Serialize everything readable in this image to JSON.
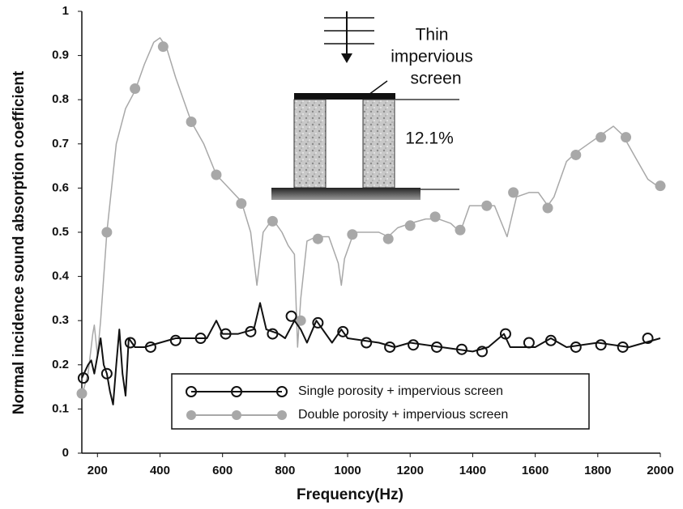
{
  "chart_data": {
    "type": "line",
    "x_label": "Frequency(Hz)",
    "y_label": "Normal incidence sound absorption coefficient",
    "xlim": [
      150,
      2000
    ],
    "ylim": [
      0,
      1
    ],
    "xticks": [
      200,
      400,
      600,
      800,
      1000,
      1200,
      1400,
      1600,
      1800,
      2000
    ],
    "yticks": [
      0,
      0.1,
      0.2,
      0.3,
      0.4,
      0.5,
      0.6,
      0.7,
      0.8,
      0.9,
      1
    ],
    "legend": "lower-center",
    "annotations": [
      "Thin",
      "impervious",
      "screen",
      "12.1%"
    ],
    "series": [
      {
        "name": "Single porosity + impervious screen",
        "color": "#111111",
        "marker": "open-circle",
        "x": [
          150,
          170,
          180,
          190,
          200,
          210,
          220,
          230,
          240,
          250,
          260,
          270,
          280,
          290,
          300,
          320,
          350,
          400,
          450,
          500,
          550,
          580,
          600,
          650,
          700,
          720,
          740,
          780,
          800,
          830,
          850,
          870,
          900,
          950,
          980,
          1000,
          1100,
          1150,
          1200,
          1300,
          1400,
          1450,
          1500,
          1520,
          1600,
          1650,
          1700,
          1800,
          1900,
          1950,
          2000
        ],
        "values": [
          0.17,
          0.2,
          0.21,
          0.18,
          0.22,
          0.26,
          0.2,
          0.18,
          0.14,
          0.11,
          0.2,
          0.28,
          0.18,
          0.13,
          0.26,
          0.24,
          0.24,
          0.25,
          0.26,
          0.26,
          0.26,
          0.3,
          0.27,
          0.27,
          0.28,
          0.34,
          0.28,
          0.27,
          0.26,
          0.3,
          0.28,
          0.25,
          0.3,
          0.25,
          0.28,
          0.26,
          0.25,
          0.24,
          0.25,
          0.24,
          0.23,
          0.24,
          0.27,
          0.24,
          0.24,
          0.26,
          0.24,
          0.25,
          0.24,
          0.25,
          0.26
        ],
        "marker_x": [
          155,
          230,
          305,
          370,
          450,
          530,
          610,
          690,
          760,
          820,
          905,
          985,
          1060,
          1135,
          1210,
          1285,
          1365,
          1430,
          1505,
          1580,
          1650,
          1730,
          1810,
          1880,
          1960
        ],
        "marker_values": [
          0.17,
          0.18,
          0.25,
          0.24,
          0.255,
          0.26,
          0.27,
          0.275,
          0.27,
          0.31,
          0.295,
          0.275,
          0.25,
          0.24,
          0.245,
          0.24,
          0.235,
          0.23,
          0.27,
          0.25,
          0.255,
          0.24,
          0.245,
          0.24,
          0.26
        ]
      },
      {
        "name": "Double porosity + impervious screen",
        "color": "#a8a8a8",
        "marker": "filled-circle",
        "x": [
          150,
          170,
          185,
          190,
          200,
          210,
          230,
          260,
          290,
          320,
          350,
          380,
          400,
          420,
          450,
          500,
          540,
          580,
          620,
          660,
          690,
          710,
          730,
          760,
          790,
          810,
          830,
          840,
          850,
          870,
          900,
          940,
          970,
          980,
          990,
          1020,
          1060,
          1100,
          1130,
          1160,
          1200,
          1250,
          1290,
          1330,
          1360,
          1390,
          1430,
          1470,
          1510,
          1540,
          1580,
          1610,
          1640,
          1660,
          1700,
          1730,
          1770,
          1810,
          1850,
          1880,
          1920,
          1960,
          2000
        ],
        "values": [
          0.13,
          0.18,
          0.27,
          0.29,
          0.22,
          0.3,
          0.5,
          0.7,
          0.78,
          0.82,
          0.88,
          0.93,
          0.94,
          0.92,
          0.85,
          0.75,
          0.7,
          0.63,
          0.6,
          0.57,
          0.5,
          0.38,
          0.5,
          0.53,
          0.5,
          0.47,
          0.45,
          0.24,
          0.35,
          0.48,
          0.49,
          0.49,
          0.43,
          0.38,
          0.44,
          0.5,
          0.5,
          0.5,
          0.49,
          0.51,
          0.52,
          0.53,
          0.53,
          0.52,
          0.5,
          0.56,
          0.56,
          0.56,
          0.49,
          0.58,
          0.59,
          0.59,
          0.56,
          0.58,
          0.66,
          0.68,
          0.7,
          0.72,
          0.74,
          0.72,
          0.67,
          0.62,
          0.6
        ],
        "marker_x": [
          150,
          230,
          320,
          410,
          500,
          580,
          660,
          760,
          850,
          905,
          1015,
          1130,
          1200,
          1280,
          1360,
          1445,
          1530,
          1640,
          1730,
          1810,
          1890,
          2000
        ],
        "marker_values": [
          0.135,
          0.5,
          0.825,
          0.92,
          0.75,
          0.63,
          0.565,
          0.525,
          0.3,
          0.485,
          0.495,
          0.485,
          0.515,
          0.535,
          0.505,
          0.56,
          0.59,
          0.555,
          0.675,
          0.715,
          0.715,
          0.605
        ]
      }
    ]
  }
}
